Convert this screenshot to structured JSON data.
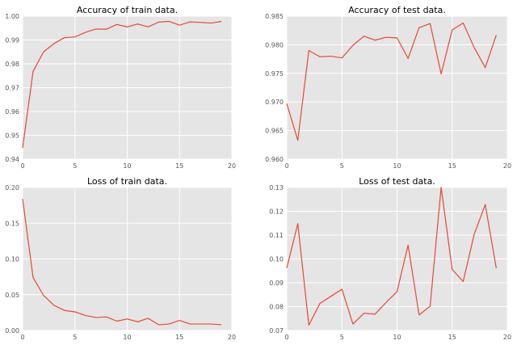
{
  "chart_data": [
    {
      "type": "line",
      "title": "Accuracy of train data.",
      "xlabel": "",
      "ylabel": "",
      "xlim": [
        0,
        20
      ],
      "ylim": [
        0.94,
        1.0
      ],
      "xticks": [
        "0",
        "5",
        "10",
        "15",
        "20"
      ],
      "yticks": [
        "0.94",
        "0.95",
        "0.96",
        "0.97",
        "0.98",
        "0.99",
        "1.00"
      ],
      "grid": true,
      "color": "#e24a33",
      "background": "#e5e5e5",
      "series": [
        {
          "x": [
            0,
            1,
            2,
            3,
            4,
            5,
            6,
            7,
            8,
            9,
            10,
            11,
            12,
            13,
            14,
            15,
            16,
            17,
            18,
            19
          ],
          "values": [
            0.9447,
            0.9768,
            0.985,
            0.9885,
            0.991,
            0.9913,
            0.9932,
            0.9946,
            0.9945,
            0.9965,
            0.9955,
            0.9967,
            0.9955,
            0.9975,
            0.9978,
            0.9962,
            0.9976,
            0.9974,
            0.9971,
            0.9978
          ]
        }
      ]
    },
    {
      "type": "line",
      "title": "Accuracy of test data.",
      "xlabel": "",
      "ylabel": "",
      "xlim": [
        0,
        20
      ],
      "ylim": [
        0.96,
        0.985
      ],
      "xticks": [
        "0",
        "5",
        "10",
        "15",
        "20"
      ],
      "yticks": [
        "0.960",
        "0.965",
        "0.970",
        "0.975",
        "0.980",
        "0.985"
      ],
      "grid": true,
      "color": "#e24a33",
      "background": "#e5e5e5",
      "series": [
        {
          "x": [
            0,
            1,
            2,
            3,
            4,
            5,
            6,
            7,
            8,
            9,
            10,
            11,
            12,
            13,
            14,
            15,
            16,
            17,
            18,
            19
          ],
          "values": [
            0.9697,
            0.9633,
            0.979,
            0.9779,
            0.978,
            0.9777,
            0.9799,
            0.9815,
            0.9808,
            0.9813,
            0.9812,
            0.9776,
            0.983,
            0.9837,
            0.9749,
            0.9826,
            0.9838,
            0.9795,
            0.976,
            0.9817
          ]
        }
      ]
    },
    {
      "type": "line",
      "title": "Loss of train data.",
      "xlabel": "",
      "ylabel": "",
      "xlim": [
        0,
        20
      ],
      "ylim": [
        0,
        0.2
      ],
      "xticks": [
        "0",
        "5",
        "10",
        "15",
        "20"
      ],
      "yticks": [
        "0.00",
        "0.05",
        "0.10",
        "0.15",
        "0.20"
      ],
      "grid": true,
      "color": "#e24a33",
      "background": "#e5e5e5",
      "series": [
        {
          "x": [
            0,
            1,
            2,
            3,
            4,
            5,
            6,
            7,
            8,
            9,
            10,
            11,
            12,
            13,
            14,
            15,
            16,
            17,
            18,
            19
          ],
          "values": [
            0.184,
            0.074,
            0.049,
            0.035,
            0.028,
            0.026,
            0.021,
            0.018,
            0.019,
            0.013,
            0.016,
            0.012,
            0.017,
            0.008,
            0.009,
            0.014,
            0.009,
            0.009,
            0.009,
            0.008
          ]
        }
      ]
    },
    {
      "type": "line",
      "title": "Loss of test data.",
      "xlabel": "",
      "ylabel": "",
      "xlim": [
        0,
        20
      ],
      "ylim": [
        0.07,
        0.13
      ],
      "xticks": [
        "0",
        "5",
        "10",
        "15",
        "20"
      ],
      "yticks": [
        "0.07",
        "0.08",
        "0.09",
        "0.10",
        "0.11",
        "0.12",
        "0.13"
      ],
      "grid": true,
      "color": "#e24a33",
      "background": "#e5e5e5",
      "series": [
        {
          "x": [
            0,
            1,
            2,
            3,
            4,
            5,
            6,
            7,
            8,
            9,
            10,
            11,
            12,
            13,
            14,
            15,
            16,
            17,
            18,
            19
          ],
          "values": [
            0.0962,
            0.1148,
            0.0722,
            0.0813,
            0.0843,
            0.0873,
            0.0727,
            0.0772,
            0.0768,
            0.0817,
            0.0863,
            0.1058,
            0.0765,
            0.0802,
            0.13,
            0.0956,
            0.0905,
            0.1104,
            0.1228,
            0.0961
          ]
        }
      ]
    }
  ]
}
